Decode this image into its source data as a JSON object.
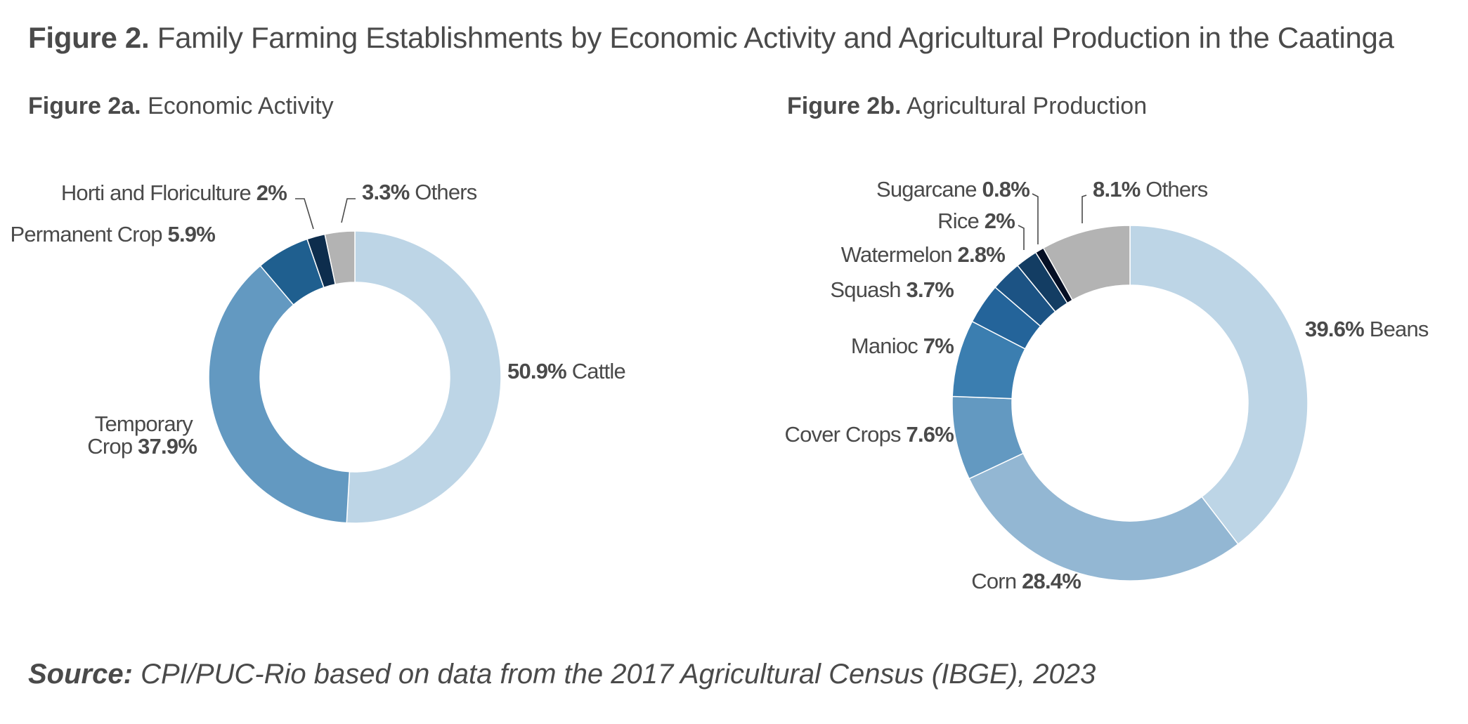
{
  "title": {
    "prefix": "Figure 2.",
    "text": "Family Farming Establishments by Economic Activity and Agricultural Production in the Caatinga"
  },
  "chart_data": [
    {
      "type": "pie",
      "donut": true,
      "title_prefix": "Figure 2a.",
      "title": "Economic Activity",
      "start": "top",
      "direction": "clockwise",
      "slices": [
        {
          "label": "Cattle",
          "value": 50.9,
          "value_text": "50.9%",
          "color": "#bdd5e6"
        },
        {
          "label": "Temporary Crop",
          "value": 37.9,
          "value_text": "37.9%",
          "color": "#6399c1"
        },
        {
          "label": "Permanent Crop",
          "value": 5.9,
          "value_text": "5.9%",
          "color": "#1f5f8f"
        },
        {
          "label": "Horti and Floriculture",
          "value": 2,
          "value_text": "2%",
          "color": "#0d2d4d"
        },
        {
          "label": "Others",
          "value": 3.3,
          "value_text": "3.3%",
          "color": "#b3b3b3"
        }
      ]
    },
    {
      "type": "pie",
      "donut": true,
      "title_prefix": "Figure 2b.",
      "title": "Agricultural Production",
      "start": "top",
      "direction": "clockwise",
      "slices": [
        {
          "label": "Beans",
          "value": 39.6,
          "value_text": "39.6%",
          "color": "#bdd5e6"
        },
        {
          "label": "Corn",
          "value": 28.4,
          "value_text": "28.4%",
          "color": "#93b7d3"
        },
        {
          "label": "Cover Crops",
          "value": 7.6,
          "value_text": "7.6%",
          "color": "#6399c1"
        },
        {
          "label": "Manioc",
          "value": 7,
          "value_text": "7%",
          "color": "#3b7eb0"
        },
        {
          "label": "Squash",
          "value": 3.7,
          "value_text": "3.7%",
          "color": "#24649a"
        },
        {
          "label": "Watermelon",
          "value": 2.8,
          "value_text": "2.8%",
          "color": "#1c5384"
        },
        {
          "label": "Rice",
          "value": 2,
          "value_text": "2%",
          "color": "#133d63"
        },
        {
          "label": "Sugarcane",
          "value": 0.8,
          "value_text": "0.8%",
          "color": "#050f24"
        },
        {
          "label": "Others",
          "value": 8.1,
          "value_text": "8.1%",
          "color": "#b3b3b3"
        }
      ]
    }
  ],
  "source": {
    "prefix": "Source:",
    "text": "CPI/PUC-Rio based on data from the 2017 Agricultural Census (IBGE), 2023"
  }
}
